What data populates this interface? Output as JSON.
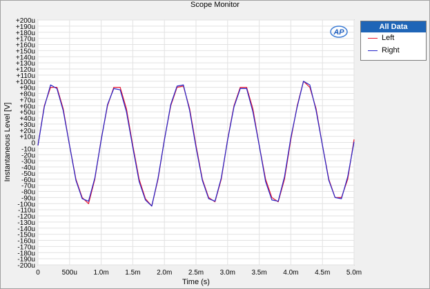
{
  "window": {
    "title": "Scope Monitor"
  },
  "logo_text": "AP",
  "legend": {
    "header": "All Data",
    "items": [
      {
        "label": "Left",
        "color": "#e8142c"
      },
      {
        "label": "Right",
        "color": "#2222c8"
      }
    ]
  },
  "chart_data": {
    "type": "line",
    "title": "Scope Monitor",
    "xlabel": "Time (s)",
    "ylabel": "Instantaneous Level [V]",
    "xlim": [
      0,
      0.005
    ],
    "ylim": [
      -0.0002,
      0.0002
    ],
    "grid": true,
    "legend_position": "top-right-outside",
    "x_ticks": [
      {
        "v": 0,
        "label": "0"
      },
      {
        "v": 0.0005,
        "label": "500u"
      },
      {
        "v": 0.001,
        "label": "1.0m"
      },
      {
        "v": 0.0015,
        "label": "1.5m"
      },
      {
        "v": 0.002,
        "label": "2.0m"
      },
      {
        "v": 0.0025,
        "label": "2.5m"
      },
      {
        "v": 0.003,
        "label": "3.0m"
      },
      {
        "v": 0.0035,
        "label": "3.5m"
      },
      {
        "v": 0.004,
        "label": "4.0m"
      },
      {
        "v": 0.0045,
        "label": "4.5m"
      },
      {
        "v": 0.005,
        "label": "5.0m"
      }
    ],
    "y_ticks": [
      {
        "v": 0.0002,
        "label": "+200u"
      },
      {
        "v": 0.00019,
        "label": "+190u"
      },
      {
        "v": 0.00018,
        "label": "+180u"
      },
      {
        "v": 0.00017,
        "label": "+170u"
      },
      {
        "v": 0.00016,
        "label": "+160u"
      },
      {
        "v": 0.00015,
        "label": "+150u"
      },
      {
        "v": 0.00014,
        "label": "+140u"
      },
      {
        "v": 0.00013,
        "label": "+130u"
      },
      {
        "v": 0.00012,
        "label": "+120u"
      },
      {
        "v": 0.00011,
        "label": "+110u"
      },
      {
        "v": 0.0001,
        "label": "+100u"
      },
      {
        "v": 9e-05,
        "label": "+90u"
      },
      {
        "v": 8e-05,
        "label": "+80u"
      },
      {
        "v": 7e-05,
        "label": "+70u"
      },
      {
        "v": 6e-05,
        "label": "+60u"
      },
      {
        "v": 5e-05,
        "label": "+50u"
      },
      {
        "v": 4e-05,
        "label": "+40u"
      },
      {
        "v": 3e-05,
        "label": "+30u"
      },
      {
        "v": 2e-05,
        "label": "+20u"
      },
      {
        "v": 1e-05,
        "label": "+10u"
      },
      {
        "v": 0,
        "label": "0"
      },
      {
        "v": -1e-05,
        "label": "-10u"
      },
      {
        "v": -2e-05,
        "label": "-20u"
      },
      {
        "v": -3e-05,
        "label": "-30u"
      },
      {
        "v": -4e-05,
        "label": "-40u"
      },
      {
        "v": -5e-05,
        "label": "-50u"
      },
      {
        "v": -6e-05,
        "label": "-60u"
      },
      {
        "v": -7e-05,
        "label": "-70u"
      },
      {
        "v": -8e-05,
        "label": "-80u"
      },
      {
        "v": -9e-05,
        "label": "-90u"
      },
      {
        "v": -0.0001,
        "label": "-100u"
      },
      {
        "v": -0.00011,
        "label": "-110u"
      },
      {
        "v": -0.00012,
        "label": "-120u"
      },
      {
        "v": -0.00013,
        "label": "-130u"
      },
      {
        "v": -0.00014,
        "label": "-140u"
      },
      {
        "v": -0.00015,
        "label": "-150u"
      },
      {
        "v": -0.00016,
        "label": "-160u"
      },
      {
        "v": -0.00017,
        "label": "-170u"
      },
      {
        "v": -0.00018,
        "label": "-180u"
      },
      {
        "v": -0.00019,
        "label": "-190u"
      },
      {
        "v": -0.0002,
        "label": "-200u"
      }
    ],
    "x": [
      0,
      0.0001,
      0.0002,
      0.0003,
      0.0004,
      0.0005,
      0.0006,
      0.0007,
      0.0008,
      0.0009,
      0.001,
      0.0011,
      0.0012,
      0.0013,
      0.0014,
      0.0015,
      0.0016,
      0.0017,
      0.0018,
      0.0019,
      0.002,
      0.0021,
      0.0022,
      0.0023,
      0.0024,
      0.0025,
      0.0026,
      0.0027,
      0.0028,
      0.0029,
      0.003,
      0.0031,
      0.0032,
      0.0033,
      0.0034,
      0.0035,
      0.0036,
      0.0037,
      0.0038,
      0.0039,
      0.004,
      0.0041,
      0.0042,
      0.0043,
      0.0044,
      0.0045,
      0.0046,
      0.0047,
      0.0048,
      0.0049,
      0.005
    ],
    "series": [
      {
        "name": "Left",
        "color": "#e8142c",
        "values": [
          -5e-06,
          6e-05,
          9e-05,
          9e-05,
          5.5e-05,
          -5e-06,
          -6e-05,
          -9e-05,
          -0.0001,
          -6e-05,
          5e-06,
          6e-05,
          9e-05,
          9e-05,
          5.5e-05,
          -5e-06,
          -6e-05,
          -9.2e-05,
          -0.000104,
          -6e-05,
          5e-06,
          6e-05,
          9e-05,
          9.2e-05,
          5.5e-05,
          -5e-06,
          -6e-05,
          -9e-05,
          -9.7e-05,
          -6e-05,
          5e-06,
          6e-05,
          9e-05,
          9e-05,
          5.5e-05,
          -5e-06,
          -6e-05,
          -9e-05,
          -9.7e-05,
          -6e-05,
          5e-06,
          6e-05,
          0.0001,
          9e-05,
          5.5e-05,
          -5e-06,
          -6e-05,
          -9e-05,
          -9e-05,
          -6e-05,
          5e-06
        ]
      },
      {
        "name": "Right",
        "color": "#2222c8",
        "values": [
          -5e-06,
          5.8e-05,
          9.4e-05,
          8.8e-05,
          5.2e-05,
          -5e-06,
          -6.2e-05,
          -9.2e-05,
          -9.6e-05,
          -5.8e-05,
          4e-06,
          6.2e-05,
          8.8e-05,
          8.6e-05,
          5e-05,
          -8e-06,
          -6.4e-05,
          -9.4e-05,
          -0.000104,
          -5.8e-05,
          4e-06,
          6.2e-05,
          9.2e-05,
          9.4e-05,
          5.2e-05,
          -8e-06,
          -6.2e-05,
          -9.2e-05,
          -9.6e-05,
          -5.8e-05,
          4e-06,
          5.8e-05,
          8.8e-05,
          8.8e-05,
          5e-05,
          -5e-06,
          -6.4e-05,
          -9.4e-05,
          -9.6e-05,
          -5.6e-05,
          8e-06,
          5.8e-05,
          0.0001,
          9.4e-05,
          5.2e-05,
          -5e-06,
          -6.2e-05,
          -9e-05,
          -9.2e-05,
          -5.6e-05,
          1e-06
        ]
      }
    ]
  }
}
